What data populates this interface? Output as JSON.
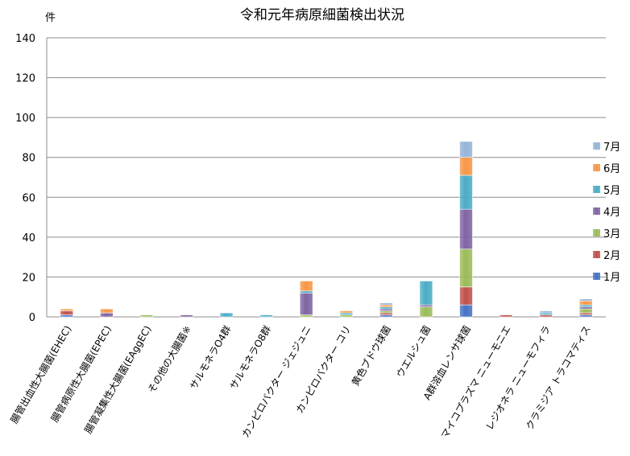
{
  "chart_data": {
    "type": "bar",
    "stacked": true,
    "title": "令和元年病原細菌検出状況",
    "ylabel": "件",
    "ylim": [
      0,
      140
    ],
    "yticks": [
      0,
      20,
      40,
      60,
      80,
      100,
      120,
      140
    ],
    "grid": true,
    "legend_position": "right",
    "categories": [
      "腸管出血性大腸菌(EHEC)",
      "腸管病原性大腸菌(EPEC)",
      "腸管凝集性大腸菌(EAggEC)",
      "その他の大腸菌※",
      "サルモネラO4群",
      "サルモネラO8群",
      "カンピロバクター ジェジュニ",
      "カンピロバクター コリ",
      "黄色ブドウ球菌",
      "ウエルシュ菌",
      "A群溶血レンサ球菌",
      "マイコプラズマ ニューモニエ",
      "レジオネラ ニューモフィラ",
      "クラミジア トラコマティス"
    ],
    "series": [
      {
        "name": "1月",
        "color": "#4472c4",
        "values": [
          1,
          0,
          0,
          0,
          0,
          0,
          0,
          0,
          1,
          0,
          6,
          0,
          0,
          1
        ]
      },
      {
        "name": "2月",
        "color": "#c0504d",
        "values": [
          2,
          0,
          0,
          0,
          0,
          0,
          0,
          0,
          1,
          0,
          9,
          1,
          1,
          1
        ]
      },
      {
        "name": "3月",
        "color": "#9bbb59",
        "values": [
          0,
          0,
          1,
          0,
          0,
          0,
          1,
          1,
          1,
          5,
          19,
          0,
          0,
          2
        ]
      },
      {
        "name": "4月",
        "color": "#8064a2",
        "values": [
          0,
          2,
          0,
          1,
          0,
          0,
          11,
          0,
          1,
          1,
          20,
          0,
          0,
          1
        ]
      },
      {
        "name": "5月",
        "color": "#4bacc6",
        "values": [
          0,
          0,
          0,
          0,
          2,
          1,
          1,
          1,
          1,
          12,
          17,
          0,
          1,
          1
        ]
      },
      {
        "name": "6月",
        "color": "#f79646",
        "values": [
          1,
          2,
          0,
          0,
          0,
          0,
          5,
          1,
          1,
          0,
          9,
          0,
          0,
          2
        ]
      },
      {
        "name": "7月",
        "color": "#95b3d7",
        "values": [
          0,
          0,
          0,
          0,
          0,
          0,
          0,
          0,
          1,
          0,
          8,
          0,
          1,
          1
        ]
      }
    ]
  }
}
